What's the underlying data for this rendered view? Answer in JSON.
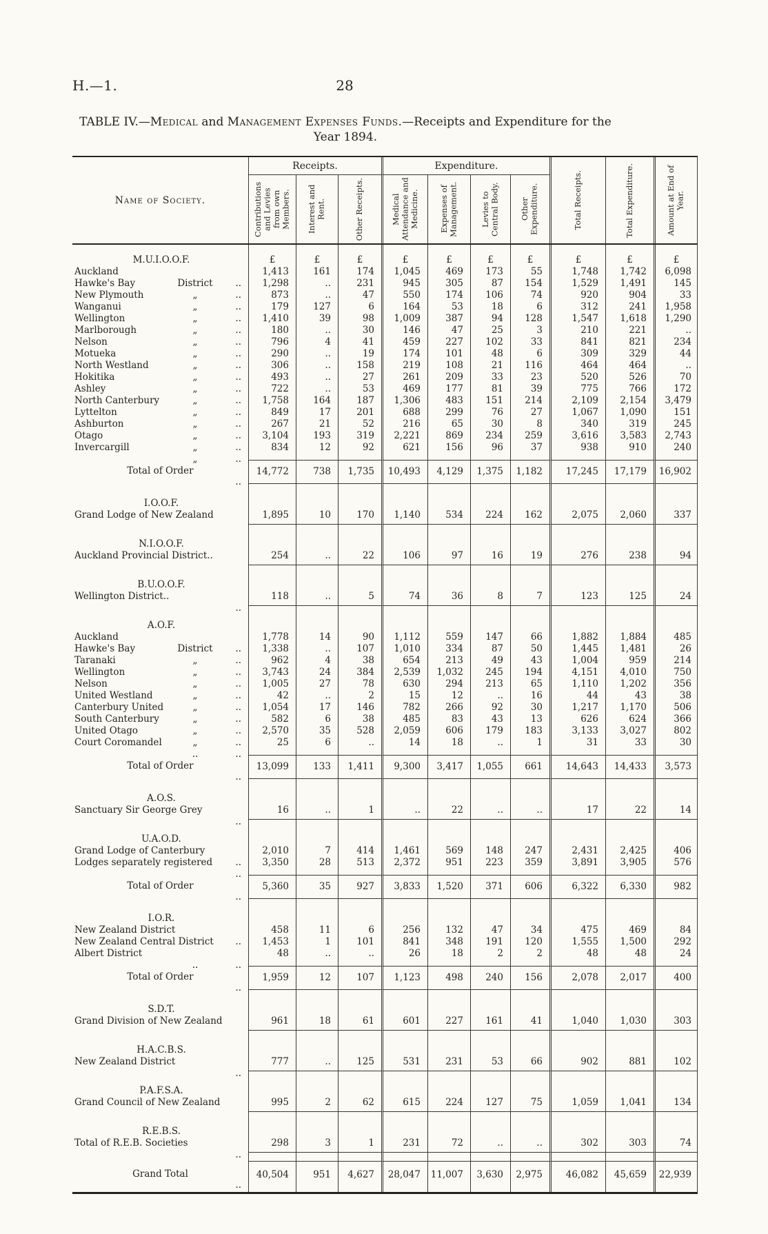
{
  "page": {
    "doc_ref": "H.—1.",
    "page_number": "28",
    "title": {
      "parts": [
        {
          "text": "TABLE IV.",
          "sc": false
        },
        {
          "text": "—",
          "sc": false
        },
        {
          "text": "Medical",
          "sc": true
        },
        {
          "text": " and ",
          "sc": false
        },
        {
          "text": "Management Expenses Funds.",
          "sc": true
        },
        {
          "text": "—Receipts and Expenditure for the",
          "sc": false
        }
      ],
      "line2": "Year 1894."
    }
  },
  "table": {
    "name_header": "Name of Society.",
    "group_receipts": "Receipts.",
    "group_expenditure": "Expenditure.",
    "col_headers": [
      "Contributions and Levies from own Members.",
      "Interest and Rent.",
      "Other Receipts.",
      "Medical Attendance and Medicine.",
      "Expenses of Management.",
      "Levies to Central Body.",
      "Other Expenditure.",
      "Total Receipts.",
      "Total Expenditure.",
      "Amount at End of Year."
    ],
    "currency": "£",
    "sections": [
      {
        "heading": "M.U.I.O.O.F.",
        "show_currency": true,
        "rows": [
          {
            "name": "Auckland",
            "mid": "District",
            "dots": "..",
            "values": [
              "1,413",
              "161",
              "174",
              "1,045",
              "469",
              "173",
              "55",
              "1,748",
              "1,742",
              "6,098"
            ]
          },
          {
            "name": "Hawke's Bay",
            "mid": "„",
            "dots": "..",
            "values": [
              "1,298",
              "..",
              "231",
              "945",
              "305",
              "87",
              "154",
              "1,529",
              "1,491",
              "145"
            ]
          },
          {
            "name": "New Plymouth",
            "mid": "„",
            "dots": "..",
            "values": [
              "873",
              "..",
              "47",
              "550",
              "174",
              "106",
              "74",
              "920",
              "904",
              "33"
            ]
          },
          {
            "name": "Wanganui",
            "mid": "„",
            "dots": "..",
            "values": [
              "179",
              "127",
              "6",
              "164",
              "53",
              "18",
              "6",
              "312",
              "241",
              "1,958"
            ]
          },
          {
            "name": "Wellington",
            "mid": "„",
            "dots": "..",
            "values": [
              "1,410",
              "39",
              "98",
              "1,009",
              "387",
              "94",
              "128",
              "1,547",
              "1,618",
              "1,290"
            ]
          },
          {
            "name": "Marlborough",
            "mid": "„",
            "dots": "..",
            "values": [
              "180",
              "..",
              "30",
              "146",
              "47",
              "25",
              "3",
              "210",
              "221",
              ".."
            ]
          },
          {
            "name": "Nelson",
            "mid": "„",
            "dots": "..",
            "values": [
              "796",
              "4",
              "41",
              "459",
              "227",
              "102",
              "33",
              "841",
              "821",
              "234"
            ]
          },
          {
            "name": "Motueka",
            "mid": "„",
            "dots": "..",
            "values": [
              "290",
              "..",
              "19",
              "174",
              "101",
              "48",
              "6",
              "309",
              "329",
              "44"
            ]
          },
          {
            "name": "North Westland",
            "mid": "„",
            "dots": "..",
            "values": [
              "306",
              "..",
              "158",
              "219",
              "108",
              "21",
              "116",
              "464",
              "464",
              ".."
            ]
          },
          {
            "name": "Hokitika",
            "mid": "„",
            "dots": "..",
            "values": [
              "493",
              "..",
              "27",
              "261",
              "209",
              "33",
              "23",
              "520",
              "526",
              "70"
            ]
          },
          {
            "name": "Ashley",
            "mid": "„",
            "dots": "..",
            "values": [
              "722",
              "..",
              "53",
              "469",
              "177",
              "81",
              "39",
              "775",
              "766",
              "172"
            ]
          },
          {
            "name": "North Canterbury",
            "mid": "„",
            "dots": "..",
            "values": [
              "1,758",
              "164",
              "187",
              "1,306",
              "483",
              "151",
              "214",
              "2,109",
              "2,154",
              "3,479"
            ]
          },
          {
            "name": "Lyttelton",
            "mid": "„",
            "dots": "..",
            "values": [
              "849",
              "17",
              "201",
              "688",
              "299",
              "76",
              "27",
              "1,067",
              "1,090",
              "151"
            ]
          },
          {
            "name": "Ashburton",
            "mid": "„",
            "dots": "..",
            "values": [
              "267",
              "21",
              "52",
              "216",
              "65",
              "30",
              "8",
              "340",
              "319",
              "245"
            ]
          },
          {
            "name": "Otago",
            "mid": "„",
            "dots": "..",
            "values": [
              "3,104",
              "193",
              "319",
              "2,221",
              "869",
              "234",
              "259",
              "3,616",
              "3,583",
              "2,743"
            ]
          },
          {
            "name": "Invercargill",
            "mid": "„",
            "dots": "..",
            "values": [
              "834",
              "12",
              "92",
              "621",
              "156",
              "96",
              "37",
              "938",
              "910",
              "240"
            ]
          }
        ],
        "total": {
          "label": "Total of Order",
          "dots": "..",
          "values": [
            "14,772",
            "738",
            "1,735",
            "10,493",
            "4,129",
            "1,375",
            "1,182",
            "17,245",
            "17,179",
            "16,902"
          ]
        }
      },
      {
        "heading": "I.O.O.F.",
        "rows": [
          {
            "name": "Grand Lodge of New Zealand",
            "mid": "",
            "dots": "",
            "values": [
              "1,895",
              "10",
              "170",
              "1,140",
              "534",
              "224",
              "162",
              "2,075",
              "2,060",
              "337"
            ]
          }
        ]
      },
      {
        "heading": "N.I.O.O.F.",
        "rows": [
          {
            "name": "Auckland Provincial District..",
            "mid": "",
            "dots": "",
            "values": [
              "254",
              "..",
              "22",
              "106",
              "97",
              "16",
              "19",
              "276",
              "238",
              "94"
            ]
          }
        ]
      },
      {
        "heading": "B.U.O.O.F.",
        "rows": [
          {
            "name": "Wellington District..",
            "mid": "",
            "dots": "..",
            "values": [
              "118",
              "..",
              "5",
              "74",
              "36",
              "8",
              "7",
              "123",
              "125",
              "24"
            ]
          }
        ]
      },
      {
        "heading": "A.O.F.",
        "rows": [
          {
            "name": "Auckland",
            "mid": "District",
            "dots": "..",
            "values": [
              "1,778",
              "14",
              "90",
              "1,112",
              "559",
              "147",
              "66",
              "1,882",
              "1,884",
              "485"
            ]
          },
          {
            "name": "Hawke's Bay",
            "mid": "„",
            "dots": "..",
            "values": [
              "1,338",
              "..",
              "107",
              "1,010",
              "334",
              "87",
              "50",
              "1,445",
              "1,481",
              "26"
            ]
          },
          {
            "name": "Taranaki",
            "mid": "„",
            "dots": "..",
            "values": [
              "962",
              "4",
              "38",
              "654",
              "213",
              "49",
              "43",
              "1,004",
              "959",
              "214"
            ]
          },
          {
            "name": "Wellington",
            "mid": "„",
            "dots": "..",
            "values": [
              "3,743",
              "24",
              "384",
              "2,539",
              "1,032",
              "245",
              "194",
              "4,151",
              "4,010",
              "750"
            ]
          },
          {
            "name": "Nelson",
            "mid": "„",
            "dots": "..",
            "values": [
              "1,005",
              "27",
              "78",
              "630",
              "294",
              "213",
              "65",
              "1,110",
              "1,202",
              "356"
            ]
          },
          {
            "name": "United Westland",
            "mid": "„",
            "dots": "..",
            "values": [
              "42",
              "..",
              "2",
              "15",
              "12",
              "..",
              "16",
              "44",
              "43",
              "38"
            ]
          },
          {
            "name": "Canterbury United",
            "mid": "„",
            "dots": "..",
            "values": [
              "1,054",
              "17",
              "146",
              "782",
              "266",
              "92",
              "30",
              "1,217",
              "1,170",
              "506"
            ]
          },
          {
            "name": "South Canterbury",
            "mid": "„",
            "dots": "..",
            "values": [
              "582",
              "6",
              "38",
              "485",
              "83",
              "43",
              "13",
              "626",
              "624",
              "366"
            ]
          },
          {
            "name": "United Otago",
            "mid": "„",
            "dots": "..",
            "values": [
              "2,570",
              "35",
              "528",
              "2,059",
              "606",
              "179",
              "183",
              "3,133",
              "3,027",
              "802"
            ]
          },
          {
            "name": "Court Coromandel",
            "mid": "..",
            "dots": "..",
            "values": [
              "25",
              "6",
              "..",
              "14",
              "18",
              "..",
              "1",
              "31",
              "33",
              "30"
            ]
          }
        ],
        "total": {
          "label": "Total of Order",
          "dots": "..",
          "values": [
            "13,099",
            "133",
            "1,411",
            "9,300",
            "3,417",
            "1,055",
            "661",
            "14,643",
            "14,433",
            "3,573"
          ]
        }
      },
      {
        "heading": "A.O.S.",
        "rows": [
          {
            "name": "Sanctuary Sir George Grey",
            "mid": "",
            "dots": "..",
            "values": [
              "16",
              "..",
              "1",
              "..",
              "22",
              "..",
              "..",
              "17",
              "22",
              "14"
            ]
          }
        ]
      },
      {
        "heading": "U.A.O.D.",
        "rows": [
          {
            "name": "Grand Lodge of Canterbury",
            "mid": "",
            "dots": "..",
            "values": [
              "2,010",
              "7",
              "414",
              "1,461",
              "569",
              "148",
              "247",
              "2,431",
              "2,425",
              "406"
            ]
          },
          {
            "name": "Lodges separately registered",
            "mid": "",
            "dots": "..",
            "values": [
              "3,350",
              "28",
              "513",
              "2,372",
              "951",
              "223",
              "359",
              "3,891",
              "3,905",
              "576"
            ]
          }
        ],
        "total": {
          "label": "Total of Order",
          "dots": "..",
          "values": [
            "5,360",
            "35",
            "927",
            "3,833",
            "1,520",
            "371",
            "606",
            "6,322",
            "6,330",
            "982"
          ]
        }
      },
      {
        "heading": "I.O.R.",
        "rows": [
          {
            "name": "New Zealand District",
            "mid": "",
            "dots": "..",
            "values": [
              "458",
              "11",
              "6",
              "256",
              "132",
              "47",
              "34",
              "475",
              "469",
              "84"
            ]
          },
          {
            "name": "New Zealand Central District",
            "mid": "",
            "dots": "",
            "values": [
              "1,453",
              "1",
              "101",
              "841",
              "348",
              "191",
              "120",
              "1,555",
              "1,500",
              "292"
            ]
          },
          {
            "name": "Albert District",
            "mid": "..",
            "dots": "..",
            "values": [
              "48",
              "..",
              "..",
              "26",
              "18",
              "2",
              "2",
              "48",
              "48",
              "24"
            ]
          }
        ],
        "total": {
          "label": "Total of Order",
          "dots": "..",
          "values": [
            "1,959",
            "12",
            "107",
            "1,123",
            "498",
            "240",
            "156",
            "2,078",
            "2,017",
            "400"
          ]
        }
      },
      {
        "heading": "S.D.T.",
        "rows": [
          {
            "name": "Grand Division of New Zealand",
            "mid": "",
            "dots": "",
            "values": [
              "961",
              "18",
              "61",
              "601",
              "227",
              "161",
              "41",
              "1,040",
              "1,030",
              "303"
            ]
          }
        ]
      },
      {
        "heading": "H.A.C.B.S.",
        "rows": [
          {
            "name": "New Zealand District",
            "mid": "",
            "dots": "..",
            "values": [
              "777",
              "..",
              "125",
              "531",
              "231",
              "53",
              "66",
              "902",
              "881",
              "102"
            ]
          }
        ]
      },
      {
        "heading": "P.A.F.S.A.",
        "rows": [
          {
            "name": "Grand Council of New Zealand",
            "mid": "",
            "dots": "",
            "values": [
              "995",
              "2",
              "62",
              "615",
              "224",
              "127",
              "75",
              "1,059",
              "1,041",
              "134"
            ]
          }
        ]
      },
      {
        "heading": "R.E.B.S.",
        "rows": [
          {
            "name": "Total of R.E.B. Societies",
            "mid": "",
            "dots": "..",
            "values": [
              "298",
              "3",
              "1",
              "231",
              "72",
              "..",
              "..",
              "302",
              "303",
              "74"
            ]
          }
        ]
      }
    ],
    "grand_total": {
      "label": "Grand Total",
      "dots": "..",
      "values": [
        "40,504",
        "951",
        "4,627",
        "28,047",
        "11,007",
        "3,630",
        "2,975",
        "46,082",
        "45,659",
        "22,939"
      ]
    }
  }
}
